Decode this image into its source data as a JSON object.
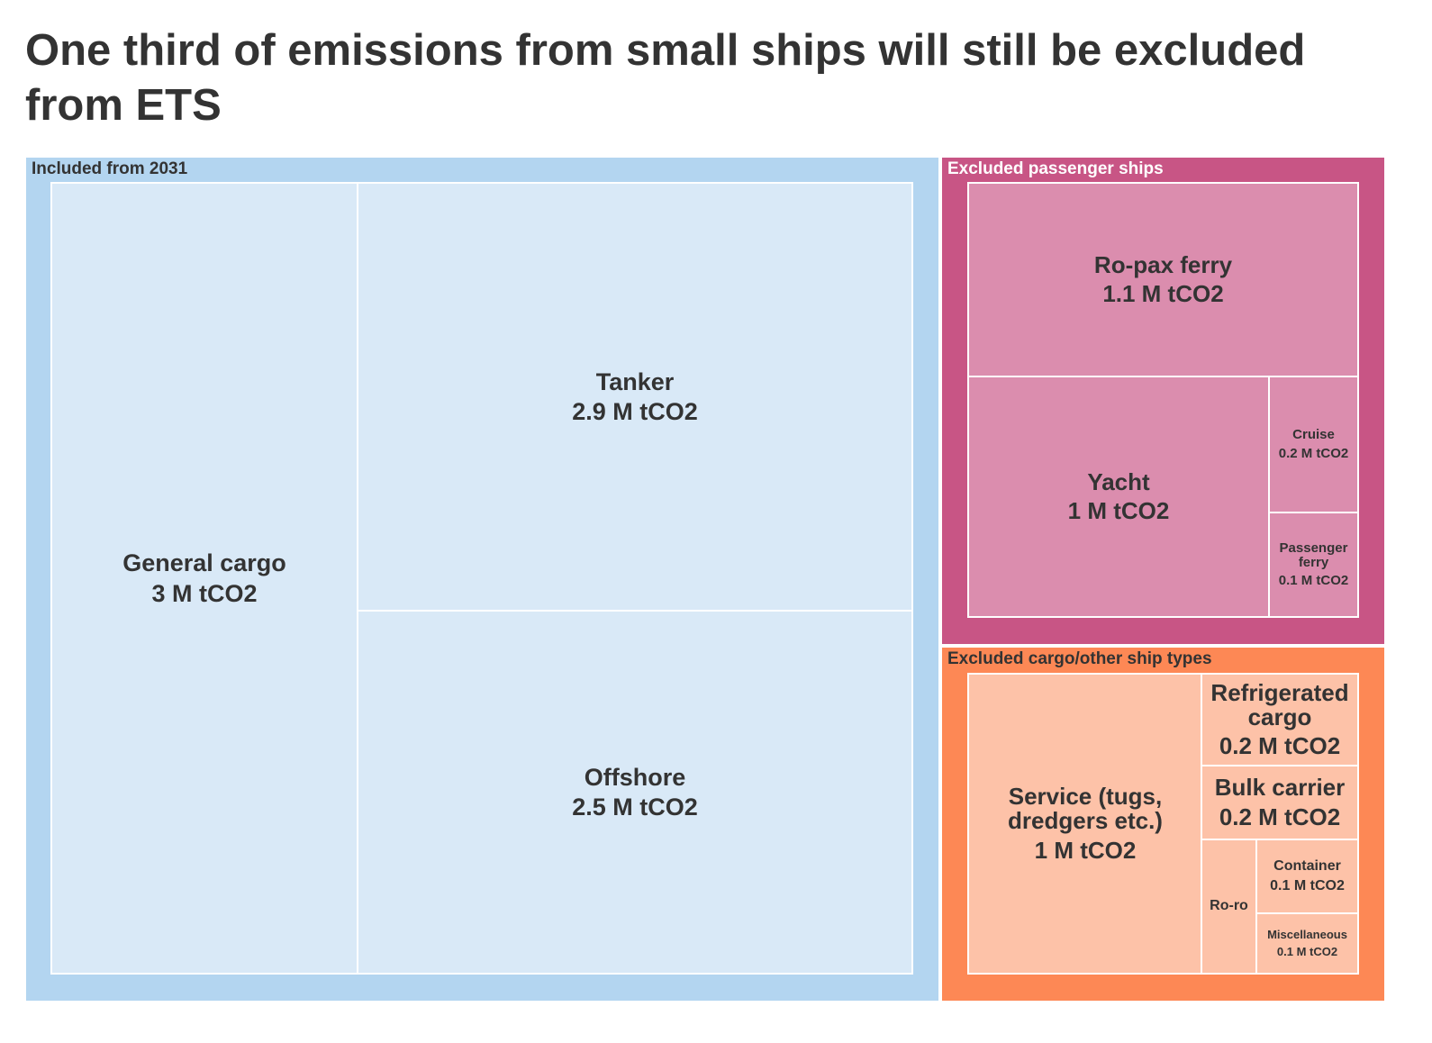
{
  "chart_data": {
    "type": "treemap",
    "title": "One third of emissions from small ships will still be excluded from ETS",
    "unit": "M tCO2",
    "groups": [
      {
        "name": "Included from 2031",
        "color": "#b3d5f0",
        "tile_color": "#d9e9f7",
        "label_color": "#333333",
        "items": [
          {
            "name": "General cargo",
            "value": 3,
            "label": "3 M tCO2"
          },
          {
            "name": "Tanker",
            "value": 2.9,
            "label": "2.9 M tCO2"
          },
          {
            "name": "Offshore",
            "value": 2.5,
            "label": "2.5 M tCO2"
          }
        ]
      },
      {
        "name": "Excluded passenger ships",
        "color": "#c85585",
        "tile_color": "#db8dae",
        "label_color": "#ffffff",
        "items": [
          {
            "name": "Ro-pax ferry",
            "value": 1.1,
            "label": "1.1 M tCO2"
          },
          {
            "name": "Yacht",
            "value": 1,
            "label": "1 M tCO2"
          },
          {
            "name": "Cruise",
            "value": 0.2,
            "label": "0.2 M tCO2"
          },
          {
            "name": "Passenger ferry",
            "value": 0.1,
            "label": "0.1 M tCO2"
          }
        ]
      },
      {
        "name": "Excluded cargo/other ship types",
        "color": "#fd8855",
        "tile_color": "#fdc2a8",
        "label_color": "#333333",
        "items": [
          {
            "name": "Service (tugs, dredgers etc.)",
            "value": 1,
            "label": "1 M tCO2"
          },
          {
            "name": "Refrigerated cargo",
            "value": 0.2,
            "label": "0.2 M tCO2"
          },
          {
            "name": "Bulk carrier",
            "value": 0.2,
            "label": "0.2 M tCO2"
          },
          {
            "name": "Ro-ro",
            "value": null,
            "label": ""
          },
          {
            "name": "Container",
            "value": 0.1,
            "label": "0.1 M tCO2"
          },
          {
            "name": "Miscellaneous",
            "value": 0.1,
            "label": "0.1 M tCO2"
          }
        ]
      }
    ]
  }
}
